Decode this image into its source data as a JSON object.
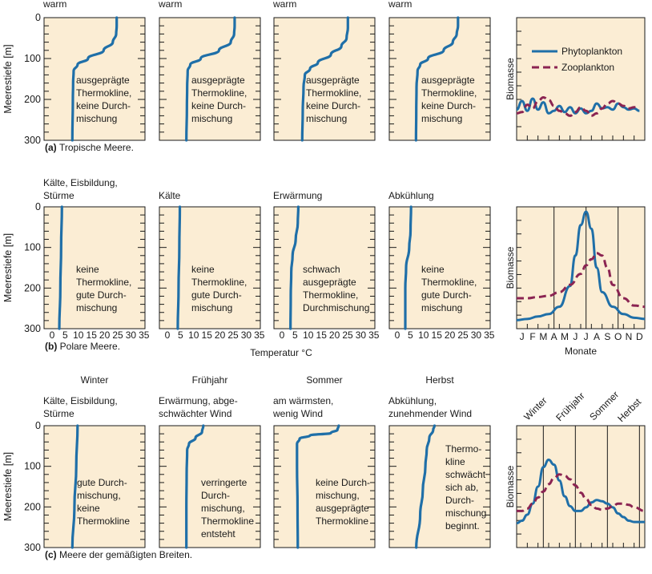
{
  "colors": {
    "panel_bg": "#fbedd4",
    "phytoplankton": "#1f6fa8",
    "zooplankton": "#8b2452"
  },
  "labels": {
    "ylabel": "Meerestiefe [m]",
    "xlabel": "Temperatur °C",
    "biomass": "Biomasse",
    "months_label": "Monate",
    "legend_phyto": "Phytoplankton",
    "legend_zoo": "Zooplankton",
    "depth_ticks": [
      "0",
      "100",
      "200",
      "300"
    ],
    "temp_ticks": [
      "0",
      "5",
      "10",
      "15",
      "20",
      "25",
      "30",
      "35"
    ],
    "month_ticks": [
      "J",
      "F",
      "M",
      "A",
      "M",
      "J",
      "J",
      "A",
      "S",
      "O",
      "N",
      "D"
    ]
  },
  "chart_data": [
    {
      "type": "line",
      "row": "a",
      "caption_letter": "(a)",
      "caption": "Tropische Meere.",
      "xlim": [
        0,
        35
      ],
      "ylim": [
        300,
        0
      ],
      "panels": [
        {
          "header": "warm",
          "annotation": [
            "ausgeprägte",
            "Thermokline,",
            "keine Durch-",
            "mischung"
          ],
          "profile": [
            [
              26,
              0
            ],
            [
              26,
              20
            ],
            [
              25.8,
              40
            ],
            [
              24.5,
              60
            ],
            [
              21,
              80
            ],
            [
              15,
              100
            ],
            [
              11,
              115
            ],
            [
              9.5,
              130
            ],
            [
              9.3,
              160
            ],
            [
              9.2,
              200
            ],
            [
              9,
              300
            ]
          ]
        },
        {
          "header": "warm",
          "annotation": [
            "ausgeprägte",
            "Thermokline,",
            "keine Durch-",
            "mischung"
          ],
          "profile": [
            [
              27,
              0
            ],
            [
              27,
              20
            ],
            [
              26.8,
              40
            ],
            [
              25.5,
              60
            ],
            [
              21,
              80
            ],
            [
              14,
              100
            ],
            [
              10,
              115
            ],
            [
              9,
              130
            ],
            [
              8.8,
              170
            ],
            [
              8.7,
              220
            ],
            [
              8.5,
              300
            ]
          ]
        },
        {
          "header": "warm",
          "annotation": [
            "ausgeprägte",
            "Thermokline,",
            "keine Durch-",
            "mischung"
          ],
          "profile": [
            [
              26.5,
              0
            ],
            [
              26.5,
              25
            ],
            [
              26,
              50
            ],
            [
              24,
              70
            ],
            [
              20,
              90
            ],
            [
              15,
              110
            ],
            [
              12,
              125
            ],
            [
              10,
              140
            ],
            [
              9.5,
              170
            ],
            [
              9.2,
              230
            ],
            [
              9,
              300
            ]
          ]
        },
        {
          "header": "warm",
          "annotation": [
            "ausgeprägte",
            "Thermokline,",
            "keine Durch-",
            "mischung"
          ],
          "profile": [
            [
              24.5,
              0
            ],
            [
              24.5,
              20
            ],
            [
              24,
              40
            ],
            [
              22.5,
              60
            ],
            [
              19,
              80
            ],
            [
              13,
              100
            ],
            [
              10,
              115
            ],
            [
              9,
              130
            ],
            [
              8.6,
              170
            ],
            [
              8.5,
              230
            ],
            [
              8.4,
              300
            ]
          ]
        }
      ],
      "biomass": {
        "months_visible": false,
        "month_lines": false,
        "series": [
          {
            "name": "Phytoplankton",
            "x": [
              0,
              0.5,
              1,
              1.5,
              2,
              2.5,
              3,
              3.5,
              4,
              4.5,
              5,
              5.5,
              6,
              6.5,
              7,
              7.5,
              8,
              8.5,
              9,
              9.5,
              10,
              10.5,
              11,
              11.5
            ],
            "y": [
              0.25,
              0.32,
              0.24,
              0.34,
              0.25,
              0.31,
              0.22,
              0.24,
              0.28,
              0.23,
              0.27,
              0.22,
              0.26,
              0.22,
              0.24,
              0.3,
              0.26,
              0.27,
              0.25,
              0.3,
              0.27,
              0.25,
              0.26,
              0.24
            ]
          },
          {
            "name": "Zooplankton",
            "x": [
              0,
              0.5,
              1,
              1.5,
              2,
              2.5,
              3,
              3.5,
              4,
              4.5,
              5,
              5.5,
              6,
              6.5,
              7,
              7.5,
              8,
              8.5,
              9,
              9.5,
              10,
              10.5,
              11,
              11.5
            ],
            "y": [
              0.22,
              0.23,
              0.29,
              0.26,
              0.32,
              0.35,
              0.33,
              0.28,
              0.24,
              0.22,
              0.2,
              0.23,
              0.27,
              0.24,
              0.2,
              0.22,
              0.26,
              0.3,
              0.32,
              0.3,
              0.28,
              0.26,
              0.27,
              0.27
            ]
          }
        ]
      }
    },
    {
      "type": "line",
      "row": "b",
      "caption_letter": "(b)",
      "caption": "Polare Meere.",
      "xlim": [
        0,
        35
      ],
      "ylim": [
        300,
        0
      ],
      "panels": [
        {
          "header": [
            "Kälte, Eisbildung,",
            "Stürme"
          ],
          "annotation": [
            "keine",
            "Thermokline,",
            "gute Durch-",
            "mischung"
          ],
          "profile": [
            [
              5,
              0
            ],
            [
              4.7,
              100
            ],
            [
              4.4,
              200
            ],
            [
              4,
              300
            ]
          ]
        },
        {
          "header": [
            "Kälte"
          ],
          "annotation": [
            "keine",
            "Thermokline,",
            "gute Durch-",
            "mischung"
          ],
          "profile": [
            [
              6,
              0
            ],
            [
              5.8,
              100
            ],
            [
              5.5,
              200
            ],
            [
              5.2,
              300
            ]
          ]
        },
        {
          "header": [
            "Erwärmung"
          ],
          "annotation": [
            "schwach",
            "ausgeprägte",
            "Thermokline,",
            "Durchmischung"
          ],
          "profile": [
            [
              7.5,
              0
            ],
            [
              7.3,
              40
            ],
            [
              6.5,
              80
            ],
            [
              5.3,
              120
            ],
            [
              4.8,
              160
            ],
            [
              4.6,
              220
            ],
            [
              4.5,
              300
            ]
          ]
        },
        {
          "header": [
            "Abkühlung"
          ],
          "annotation": [
            "keine",
            "Thermokline,",
            "gute Durch-",
            "mischung"
          ],
          "profile": [
            [
              6.5,
              0
            ],
            [
              6.3,
              60
            ],
            [
              5.8,
              100
            ],
            [
              4.6,
              150
            ],
            [
              4.3,
              200
            ],
            [
              4.3,
              300
            ]
          ]
        }
      ],
      "biomass": {
        "months_visible": true,
        "month_lines": true,
        "series": [
          {
            "name": "Phytoplankton",
            "x": [
              0,
              1,
              2,
              3,
              4,
              5,
              5.5,
              6,
              6.5,
              7,
              7.5,
              8,
              9,
              10,
              11,
              12
            ],
            "y": [
              0.07,
              0.08,
              0.1,
              0.12,
              0.18,
              0.35,
              0.6,
              0.85,
              0.96,
              0.82,
              0.5,
              0.3,
              0.18,
              0.12,
              0.09,
              0.08
            ]
          },
          {
            "name": "Zooplankton",
            "x": [
              0,
              1,
              2,
              3,
              4,
              5,
              6,
              6.5,
              7,
              7.5,
              8,
              8.5,
              9,
              10,
              11,
              12
            ],
            "y": [
              0.25,
              0.25,
              0.26,
              0.27,
              0.3,
              0.36,
              0.45,
              0.52,
              0.57,
              0.62,
              0.6,
              0.5,
              0.36,
              0.25,
              0.19,
              0.18
            ]
          }
        ]
      }
    },
    {
      "type": "line",
      "row": "c",
      "caption_letter": "(c)",
      "caption": "Meere der gemäßigten Breiten.",
      "xlim": [
        0,
        35
      ],
      "ylim": [
        300,
        0
      ],
      "season_headers": [
        "Winter",
        "Frühjahr",
        "Sommer",
        "Herbst"
      ],
      "panels": [
        {
          "header": [
            "Kälte, Eisbildung,",
            "Stürme"
          ],
          "annotation": [
            "gute Durch-",
            "mischung,",
            "keine",
            "Thermokline"
          ],
          "profile": [
            [
              11,
              0
            ],
            [
              10.5,
              100
            ],
            [
              9.8,
              200
            ],
            [
              9,
              300
            ]
          ]
        },
        {
          "header": [
            "Erwärmung, abge-",
            "schwächter Wind"
          ],
          "annotation": [
            "verringerte",
            "Durch-",
            "mischung,",
            "Thermokline",
            "entsteht"
          ],
          "profile": [
            [
              15,
              0
            ],
            [
              14.5,
              15
            ],
            [
              12,
              30
            ],
            [
              9.5,
              45
            ],
            [
              8.8,
              60
            ],
            [
              8.6,
              120
            ],
            [
              8.5,
              200
            ],
            [
              8.5,
              300
            ]
          ]
        },
        {
          "header": [
            "am wärmsten,",
            "wenig Wind"
          ],
          "annotation": [
            "keine Durch-",
            "mischung,",
            "ausgeprägte",
            "Thermokline"
          ],
          "profile": [
            [
              23,
              0
            ],
            [
              22.5,
              10
            ],
            [
              20,
              18
            ],
            [
              12,
              24
            ],
            [
              8,
              32
            ],
            [
              7,
              45
            ],
            [
              7,
              100
            ],
            [
              7.2,
              200
            ],
            [
              7.3,
              300
            ]
          ]
        },
        {
          "header": [
            "Abkühlung,",
            "zunehmender Wind"
          ],
          "annotation": [
            "Thermo-",
            "kline",
            "schwächt",
            "sich ab,",
            "Durch-",
            "mischung",
            "beginnt."
          ],
          "profile": [
            [
              15.5,
              0
            ],
            [
              15,
              10
            ],
            [
              13.5,
              30
            ],
            [
              12.5,
              60
            ],
            [
              12,
              100
            ],
            [
              11,
              160
            ],
            [
              10,
              220
            ],
            [
              8.5,
              300
            ]
          ]
        }
      ],
      "biomass": {
        "months_visible": false,
        "month_lines": true,
        "season_labels": [
          "Winter",
          "Frühjahr",
          "Sommer",
          "Herbst"
        ],
        "series": [
          {
            "name": "Phytoplankton",
            "x": [
              0,
              0.5,
              1,
              1.5,
              2,
              2.5,
              3,
              3.5,
              4,
              4.5,
              5,
              5.5,
              6,
              6.5,
              7,
              7.5,
              8,
              8.5,
              9,
              9.5,
              10,
              10.5,
              11,
              12
            ],
            "y": [
              0.2,
              0.22,
              0.27,
              0.36,
              0.5,
              0.66,
              0.72,
              0.68,
              0.55,
              0.42,
              0.34,
              0.3,
              0.3,
              0.33,
              0.37,
              0.39,
              0.38,
              0.36,
              0.33,
              0.28,
              0.25,
              0.22,
              0.21,
              0.21
            ]
          },
          {
            "name": "Zooplankton",
            "x": [
              0,
              0.5,
              1,
              1.5,
              2,
              2.5,
              3,
              3.5,
              4,
              4.5,
              5,
              5.5,
              6,
              6.5,
              7,
              7.5,
              8,
              8.5,
              9,
              9.5,
              10,
              10.5,
              11,
              12
            ],
            "y": [
              0.3,
              0.3,
              0.32,
              0.36,
              0.41,
              0.46,
              0.52,
              0.57,
              0.6,
              0.59,
              0.56,
              0.51,
              0.45,
              0.4,
              0.35,
              0.32,
              0.31,
              0.32,
              0.34,
              0.36,
              0.36,
              0.35,
              0.33,
              0.3
            ]
          }
        ]
      }
    }
  ]
}
